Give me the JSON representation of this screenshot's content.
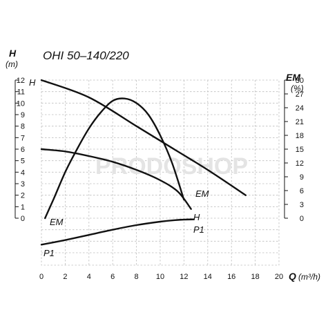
{
  "chart_data": {
    "type": "line",
    "title": "OHI 50–140/220",
    "xaxis": {
      "label_symbol": "Q",
      "label_unit": "(m³/h)",
      "range": [
        0,
        20
      ],
      "ticks": [
        "0",
        "2",
        "4",
        "6",
        "8",
        "10",
        "12",
        "14",
        "16",
        "18",
        "20"
      ]
    },
    "yaxis_left": {
      "label_symbol": "H",
      "label_unit": "(m)",
      "range": [
        0,
        12
      ],
      "ticks": [
        "0",
        "1",
        "2",
        "3",
        "4",
        "5",
        "6",
        "7",
        "8",
        "9",
        "10",
        "11",
        "12"
      ]
    },
    "yaxis_right": {
      "label_symbol": "EM",
      "label_unit": "(%)",
      "range": [
        0,
        30
      ],
      "ticks": [
        "0",
        "3",
        "6",
        "9",
        "12",
        "15",
        "18",
        "21",
        "24",
        "27",
        "30"
      ]
    },
    "grid": true,
    "series": [
      {
        "name": "H",
        "axis": "H (m), left axis",
        "points": [
          [
            0,
            12.0
          ],
          [
            4,
            10.5
          ],
          [
            8,
            8.0
          ],
          [
            11,
            6.1
          ],
          [
            14,
            4.2
          ],
          [
            17.2,
            2.0
          ]
        ],
        "labels": [
          "H",
          "EM"
        ]
      },
      {
        "name": "H",
        "axis": "H (m), left axis",
        "points": [
          [
            0,
            6.0
          ],
          [
            2,
            5.8
          ],
          [
            4,
            5.4
          ],
          [
            6,
            4.9
          ],
          [
            8,
            4.2
          ],
          [
            10,
            3.3
          ],
          [
            11.5,
            2.3
          ],
          [
            12.6,
            0.8
          ]
        ],
        "labels": [
          "H"
        ]
      },
      {
        "name": "EM",
        "axis": "EM (%), right axis",
        "points": [
          [
            0.3,
            0.0
          ],
          [
            1,
            4.0
          ],
          [
            2,
            10.0
          ],
          [
            3,
            15.0
          ],
          [
            4,
            19.5
          ],
          [
            5,
            23.0
          ],
          [
            6,
            25.5
          ],
          [
            7,
            26.0
          ],
          [
            8,
            25.0
          ],
          [
            9,
            22.5
          ],
          [
            10,
            18.0
          ],
          [
            11,
            12.0
          ],
          [
            12,
            4.0
          ]
        ],
        "labels": [
          "EM"
        ]
      },
      {
        "name": "P1",
        "axis": "P1 (kW), shared with left axis",
        "points": [
          [
            0,
            -2.3
          ],
          [
            2,
            -1.9
          ],
          [
            4,
            -1.45
          ],
          [
            6,
            -1.0
          ],
          [
            8,
            -0.6
          ],
          [
            10,
            -0.3
          ],
          [
            11.5,
            -0.15
          ],
          [
            12.8,
            -0.1
          ]
        ],
        "labels": [
          "P1",
          "P1"
        ]
      }
    ],
    "watermark": "PRODOSHOP"
  }
}
